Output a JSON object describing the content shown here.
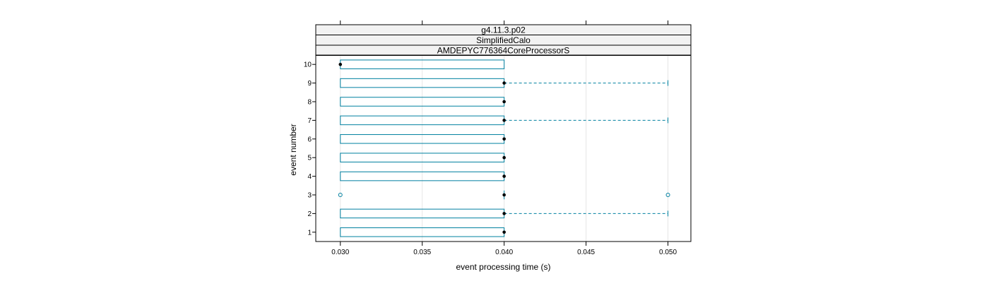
{
  "chart_data": {
    "type": "boxplot",
    "orientation": "horizontal",
    "strips": [
      "g4.11.3.p02",
      "SimplifiedCalo",
      "AMDEPYC776364CoreProcessorS"
    ],
    "xlabel": "event processing time (s)",
    "ylabel": "event number",
    "xlim": [
      0.0285,
      0.0514
    ],
    "x_ticks": [
      0.03,
      0.035,
      0.04,
      0.045,
      0.05
    ],
    "x_tick_labels": [
      "0.030",
      "0.035",
      "0.040",
      "0.045",
      "0.050"
    ],
    "grid": true,
    "series": [
      {
        "event": "1",
        "min": 0.03,
        "q1": 0.03,
        "median": 0.04,
        "q3": 0.04,
        "max": 0.04,
        "outliers": []
      },
      {
        "event": "2",
        "min": 0.03,
        "q1": 0.03,
        "median": 0.04,
        "q3": 0.04,
        "max": 0.05,
        "outliers": []
      },
      {
        "event": "3",
        "min": 0.04,
        "q1": 0.04,
        "median": 0.04,
        "q3": 0.04,
        "max": 0.04,
        "outliers": [
          0.03,
          0.05
        ]
      },
      {
        "event": "4",
        "min": 0.03,
        "q1": 0.03,
        "median": 0.04,
        "q3": 0.04,
        "max": 0.04,
        "outliers": []
      },
      {
        "event": "5",
        "min": 0.03,
        "q1": 0.03,
        "median": 0.04,
        "q3": 0.04,
        "max": 0.04,
        "outliers": []
      },
      {
        "event": "6",
        "min": 0.03,
        "q1": 0.03,
        "median": 0.04,
        "q3": 0.04,
        "max": 0.04,
        "outliers": []
      },
      {
        "event": "7",
        "min": 0.03,
        "q1": 0.03,
        "median": 0.04,
        "q3": 0.04,
        "max": 0.05,
        "outliers": []
      },
      {
        "event": "8",
        "min": 0.03,
        "q1": 0.03,
        "median": 0.04,
        "q3": 0.04,
        "max": 0.04,
        "outliers": []
      },
      {
        "event": "9",
        "min": 0.03,
        "q1": 0.03,
        "median": 0.04,
        "q3": 0.04,
        "max": 0.05,
        "outliers": []
      },
      {
        "event": "10",
        "min": 0.03,
        "q1": 0.03,
        "median": 0.03,
        "q3": 0.04,
        "max": 0.04,
        "outliers": []
      }
    ],
    "colors": {
      "box": "#0080a0",
      "whisker": "#0080a0",
      "median_dot": "#000000",
      "strip_bg": "#f2f2f2",
      "grid": "#e6e6e6",
      "frame": "#000000"
    }
  }
}
